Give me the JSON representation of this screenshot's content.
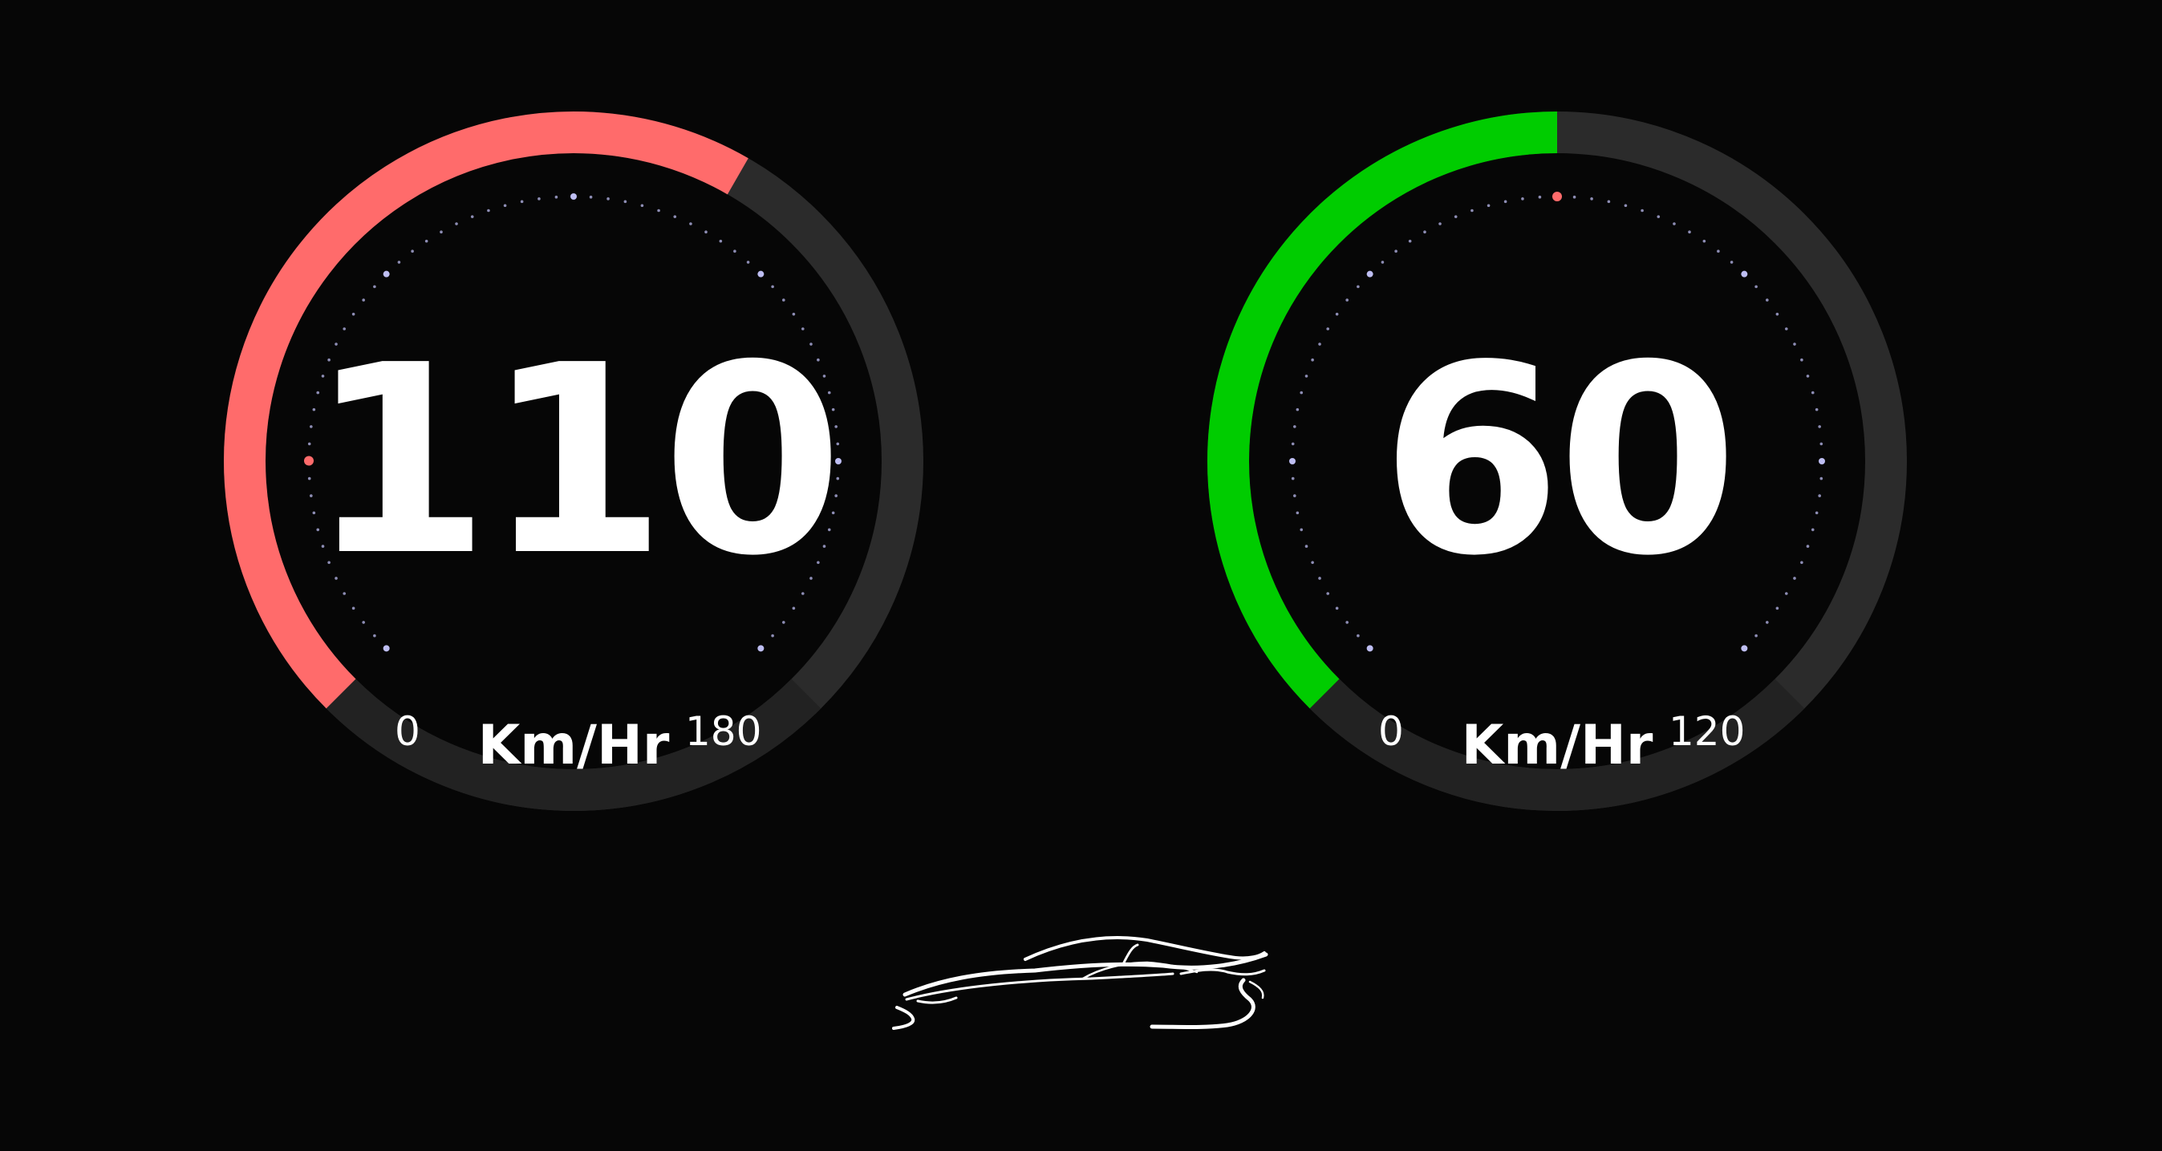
{
  "gauges": [
    {
      "value": "110",
      "unit": "Km/Hr",
      "min": "0",
      "max": "180",
      "fill_fraction": 0.611,
      "fill_color": "#ff6b6b",
      "marker_color": "#ff6b6b"
    },
    {
      "value": "60",
      "unit": "Km/Hr",
      "min": "0",
      "max": "120",
      "fill_fraction": 0.5,
      "fill_color": "#00cc00",
      "marker_color": "#ff6b6b"
    }
  ],
  "colors": {
    "background": "#060606",
    "track": "#2b2b2b",
    "tick": "#c8c8ff"
  },
  "icons": {
    "logo": "car-silhouette-icon"
  }
}
